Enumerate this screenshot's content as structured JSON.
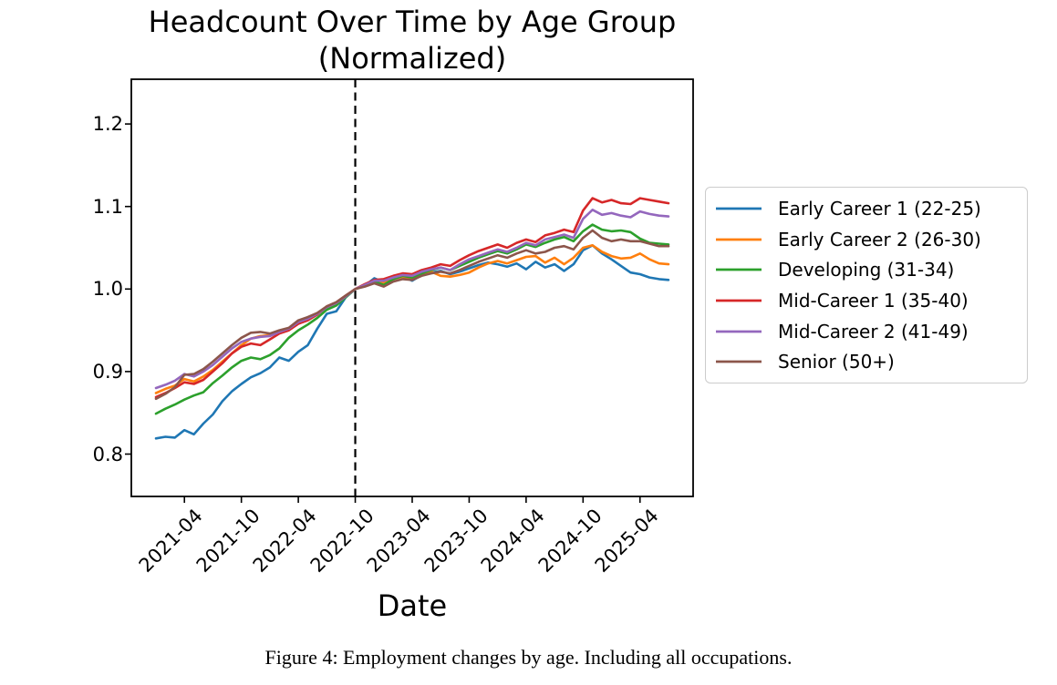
{
  "page": {
    "background": "#ffffff",
    "text_color": "#000000"
  },
  "figure": {
    "caption": "Figure 4: Employment changes by age. Including all occupations."
  },
  "chart": {
    "title_line1": "Headcount Over Time by Age Group",
    "title_line2": "(Normalized)",
    "xlabel": "Date"
  },
  "chart_data": {
    "type": "line",
    "title": "Headcount Over Time by Age Group (Normalized)",
    "xlabel": "Date",
    "ylabel": "",
    "grid": false,
    "legend_position": "right",
    "ylim": [
      0.749,
      1.254
    ],
    "y_ticks": [
      0.8,
      0.9,
      1.0,
      1.1,
      1.2
    ],
    "y_tick_labels": [
      "0.8",
      "0.9",
      "1.0",
      "1.1",
      "1.2"
    ],
    "x_tick_labels": [
      "2021-04",
      "2021-10",
      "2022-04",
      "2022-10",
      "2023-04",
      "2023-10",
      "2024-04",
      "2024-10",
      "2025-04"
    ],
    "x_tick_indices": [
      3,
      9,
      15,
      21,
      27,
      33,
      39,
      45,
      51
    ],
    "reference_line": {
      "type": "vertical-dashed",
      "x": "2022-10",
      "color": "#000000",
      "note": "normalization date, all series = 1.0"
    },
    "x": [
      "2021-01",
      "2021-02",
      "2021-03",
      "2021-04",
      "2021-05",
      "2021-06",
      "2021-07",
      "2021-08",
      "2021-09",
      "2021-10",
      "2021-11",
      "2021-12",
      "2022-01",
      "2022-02",
      "2022-03",
      "2022-04",
      "2022-05",
      "2022-06",
      "2022-07",
      "2022-08",
      "2022-09",
      "2022-10",
      "2022-11",
      "2022-12",
      "2023-01",
      "2023-02",
      "2023-03",
      "2023-04",
      "2023-05",
      "2023-06",
      "2023-07",
      "2023-08",
      "2023-09",
      "2023-10",
      "2023-11",
      "2023-12",
      "2024-01",
      "2024-02",
      "2024-03",
      "2024-04",
      "2024-05",
      "2024-06",
      "2024-07",
      "2024-08",
      "2024-09",
      "2024-10",
      "2024-11",
      "2024-12",
      "2025-01",
      "2025-02",
      "2025-03",
      "2025-04",
      "2025-05",
      "2025-06",
      "2025-07"
    ],
    "series": [
      {
        "name": "Early Career 1 (22-25)",
        "color": "#1f77b4",
        "values": [
          0.819,
          0.821,
          0.82,
          0.829,
          0.824,
          0.837,
          0.848,
          0.864,
          0.876,
          0.885,
          0.893,
          0.898,
          0.905,
          0.917,
          0.913,
          0.924,
          0.932,
          0.952,
          0.97,
          0.973,
          0.99,
          1.0,
          1.004,
          1.013,
          1.008,
          1.013,
          1.015,
          1.01,
          1.017,
          1.02,
          1.022,
          1.018,
          1.021,
          1.025,
          1.029,
          1.032,
          1.03,
          1.027,
          1.031,
          1.024,
          1.033,
          1.026,
          1.03,
          1.022,
          1.03,
          1.047,
          1.053,
          1.043,
          1.036,
          1.028,
          1.02,
          1.018,
          1.014,
          1.012,
          1.011
        ]
      },
      {
        "name": "Early Career 2 (26-30)",
        "color": "#ff7f0e",
        "values": [
          0.874,
          0.879,
          0.883,
          0.891,
          0.888,
          0.894,
          0.902,
          0.912,
          0.922,
          0.932,
          0.94,
          0.943,
          0.944,
          0.947,
          0.95,
          0.958,
          0.963,
          0.97,
          0.977,
          0.982,
          0.991,
          1.0,
          1.005,
          1.009,
          1.007,
          1.012,
          1.015,
          1.012,
          1.018,
          1.021,
          1.016,
          1.015,
          1.017,
          1.02,
          1.026,
          1.031,
          1.034,
          1.031,
          1.035,
          1.039,
          1.04,
          1.032,
          1.038,
          1.03,
          1.038,
          1.05,
          1.053,
          1.045,
          1.04,
          1.037,
          1.038,
          1.043,
          1.036,
          1.031,
          1.03
        ]
      },
      {
        "name": "Developing (31-34)",
        "color": "#2ca02c",
        "values": [
          0.849,
          0.855,
          0.86,
          0.866,
          0.871,
          0.875,
          0.886,
          0.895,
          0.905,
          0.913,
          0.917,
          0.915,
          0.92,
          0.928,
          0.941,
          0.95,
          0.957,
          0.965,
          0.975,
          0.98,
          0.99,
          1.0,
          1.004,
          1.009,
          1.005,
          1.012,
          1.016,
          1.014,
          1.019,
          1.023,
          1.026,
          1.023,
          1.028,
          1.033,
          1.038,
          1.042,
          1.046,
          1.043,
          1.048,
          1.054,
          1.051,
          1.056,
          1.06,
          1.063,
          1.058,
          1.07,
          1.078,
          1.072,
          1.07,
          1.071,
          1.069,
          1.061,
          1.056,
          1.055,
          1.054
        ]
      },
      {
        "name": "Mid-Career 1 (35-40)",
        "color": "#d62728",
        "values": [
          0.869,
          0.874,
          0.88,
          0.887,
          0.885,
          0.89,
          0.9,
          0.91,
          0.922,
          0.93,
          0.934,
          0.932,
          0.939,
          0.946,
          0.95,
          0.958,
          0.962,
          0.969,
          0.979,
          0.984,
          0.992,
          1.0,
          1.006,
          1.011,
          1.012,
          1.016,
          1.019,
          1.018,
          1.023,
          1.026,
          1.03,
          1.028,
          1.035,
          1.041,
          1.046,
          1.05,
          1.054,
          1.05,
          1.056,
          1.06,
          1.057,
          1.065,
          1.068,
          1.072,
          1.069,
          1.095,
          1.11,
          1.105,
          1.108,
          1.104,
          1.103,
          1.11,
          1.108,
          1.106,
          1.104
        ]
      },
      {
        "name": "Mid-Career 2 (41-49)",
        "color": "#9467bd",
        "values": [
          0.88,
          0.884,
          0.889,
          0.897,
          0.894,
          0.9,
          0.908,
          0.918,
          0.928,
          0.936,
          0.94,
          0.942,
          0.943,
          0.948,
          0.952,
          0.96,
          0.964,
          0.97,
          0.978,
          0.983,
          0.991,
          1.0,
          1.005,
          1.01,
          1.01,
          1.014,
          1.017,
          1.016,
          1.021,
          1.024,
          1.026,
          1.023,
          1.03,
          1.036,
          1.04,
          1.044,
          1.048,
          1.045,
          1.05,
          1.056,
          1.053,
          1.06,
          1.063,
          1.066,
          1.062,
          1.085,
          1.096,
          1.09,
          1.092,
          1.089,
          1.087,
          1.094,
          1.091,
          1.089,
          1.088
        ]
      },
      {
        "name": "Senior (50+)",
        "color": "#8c564b",
        "values": [
          0.867,
          0.873,
          0.881,
          0.896,
          0.897,
          0.903,
          0.912,
          0.922,
          0.932,
          0.941,
          0.947,
          0.948,
          0.946,
          0.95,
          0.953,
          0.962,
          0.966,
          0.971,
          0.979,
          0.984,
          0.992,
          1.0,
          1.003,
          1.007,
          1.003,
          1.009,
          1.012,
          1.011,
          1.016,
          1.019,
          1.021,
          1.019,
          1.023,
          1.028,
          1.033,
          1.037,
          1.041,
          1.038,
          1.043,
          1.047,
          1.043,
          1.045,
          1.05,
          1.052,
          1.048,
          1.062,
          1.071,
          1.062,
          1.058,
          1.06,
          1.058,
          1.058,
          1.055,
          1.052,
          1.052
        ]
      }
    ]
  }
}
